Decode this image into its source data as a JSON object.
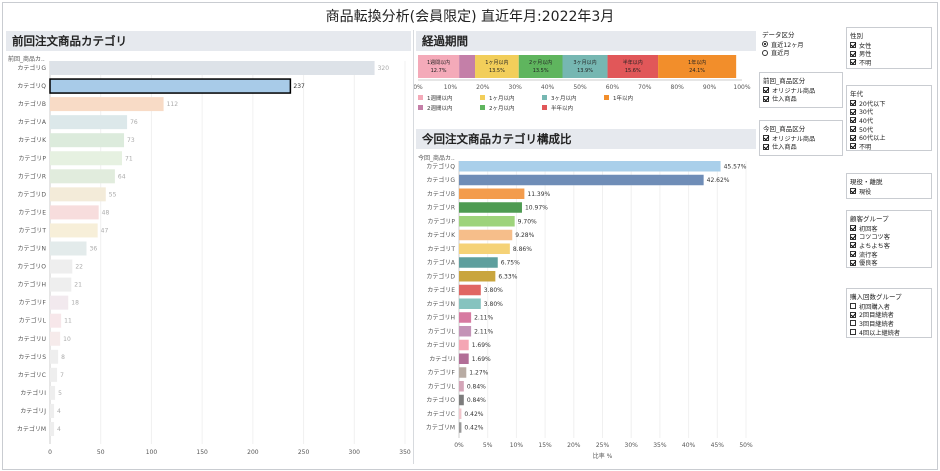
{
  "header": {
    "title": "商品転換分析(会員限定)  直近年月:2022年3月"
  },
  "left_panel": {
    "title": "前回注文商品カテゴリ",
    "dimension_label": "前回_商品カ..",
    "axis_title": "前回_件数"
  },
  "elapsed_panel": {
    "title": "経過期間"
  },
  "right_panel": {
    "title": "今回注文商品カテゴリ構成比",
    "dimension_label": "今回_商品カ..",
    "axis_title": "比率 %"
  },
  "chart_data": [
    {
      "type": "bar",
      "orientation": "horizontal",
      "categories": [
        "カテゴリG",
        "カテゴリQ",
        "カテゴリB",
        "カテゴリA",
        "カテゴリK",
        "カテゴリP",
        "カテゴリR",
        "カテゴリD",
        "カテゴリE",
        "カテゴリT",
        "カテゴリN",
        "カテゴリO",
        "カテゴリH",
        "カテゴリF",
        "カテゴリL",
        "カテゴリU",
        "カテゴリS",
        "カテゴリC",
        "カテゴリI",
        "カテゴリJ",
        "カテゴリM"
      ],
      "values": [
        320,
        237,
        112,
        76,
        73,
        71,
        64,
        55,
        48,
        47,
        36,
        22,
        21,
        18,
        11,
        10,
        8,
        7,
        5,
        4,
        4
      ],
      "value_labels": [
        "320",
        "237",
        "112",
        "76",
        "73",
        "71",
        "64",
        "55",
        "48",
        "47",
        "36",
        "22",
        "21",
        "18",
        "11",
        "10",
        "8",
        "7",
        "5",
        "4",
        "4"
      ],
      "colors": [
        "#dde2e8",
        "#a8cbe8",
        "#f8dbc6",
        "#dce8ea",
        "#dcebdc",
        "#e6f1e1",
        "#e1ecdd",
        "#f3ebd9",
        "#f7dddd",
        "#f7efd9",
        "#e3ebeb",
        "#eeeeee",
        "#eeeeee",
        "#f2e9ee",
        "#f7e7ea",
        "#f6ebeb",
        "#eeeeee",
        "#eeeeee",
        "#eeeeee",
        "#eeeeee",
        "#eeeeee"
      ],
      "selected_index": 1,
      "xlim": [
        0,
        350
      ],
      "ticks": [
        0,
        50,
        100,
        150,
        200,
        250,
        300,
        350
      ],
      "xlabel": "前回_件数"
    },
    {
      "type": "bar",
      "stacked": true,
      "orientation": "horizontal",
      "series": [
        {
          "name": "1週間以内",
          "value": 12.7,
          "color": "#f4aab9"
        },
        {
          "name": "2週間以内",
          "value": 4.9,
          "color": "#c47fa8"
        },
        {
          "name": "1ヶ月以内",
          "value": 13.5,
          "color": "#f2ce5a"
        },
        {
          "name": "2ヶ月以内",
          "value": 13.5,
          "color": "#5fb55e"
        },
        {
          "name": "3ヶ月以内",
          "value": 13.9,
          "color": "#76b7b2"
        },
        {
          "name": "半年以内",
          "value": 15.6,
          "color": "#e15759"
        },
        {
          "name": "1年以内",
          "value": 24.1,
          "color": "#f28e2b"
        }
      ],
      "segment_labels": [
        {
          "name": "1週間以内",
          "value": "12.7%"
        },
        {
          "name": "",
          "value": ""
        },
        {
          "name": "1ヶ月以内",
          "value": "13.5%"
        },
        {
          "name": "2ヶ月以内",
          "value": "13.5%"
        },
        {
          "name": "3ヶ月以内",
          "value": "13.9%"
        },
        {
          "name": "半年以内",
          "value": "15.6%"
        },
        {
          "name": "1年以内",
          "value": "24.1%"
        }
      ],
      "xlim": [
        0,
        100
      ],
      "ticks": [
        "0%",
        "10%",
        "20%",
        "30%",
        "40%",
        "50%",
        "60%",
        "70%",
        "80%",
        "90%",
        "100%"
      ],
      "legend": [
        {
          "name": "1週間以内",
          "color": "#f4aab9"
        },
        {
          "name": "1ヶ月以内",
          "color": "#f2ce5a"
        },
        {
          "name": "3ヶ月以内",
          "color": "#76b7b2"
        },
        {
          "name": "1年以内",
          "color": "#f28e2b"
        },
        {
          "name": "2週間以内",
          "color": "#c47fa8"
        },
        {
          "name": "2ヶ月以内",
          "color": "#5fb55e"
        },
        {
          "name": "半年以内",
          "color": "#e15759"
        }
      ]
    },
    {
      "type": "bar",
      "orientation": "horizontal",
      "categories": [
        "カテゴリQ",
        "カテゴリG",
        "カテゴリB",
        "カテゴリR",
        "カテゴリP",
        "カテゴリK",
        "カテゴリT",
        "カテゴリA",
        "カテゴリD",
        "カテゴリE",
        "カテゴリN",
        "カテゴリH",
        "カテゴリL",
        "カテゴリU",
        "カテゴリI",
        "カテゴリF",
        "カテゴリL",
        "カテゴリO",
        "カテゴリC",
        "カテゴリM"
      ],
      "values": [
        45.57,
        42.62,
        11.39,
        10.97,
        9.7,
        9.28,
        8.86,
        6.75,
        6.33,
        3.8,
        3.8,
        2.11,
        2.11,
        1.69,
        1.69,
        1.27,
        0.84,
        0.84,
        0.42,
        0.42
      ],
      "value_labels": [
        "45.57%",
        "42.62%",
        "11.39%",
        "10.97%",
        "9.70%",
        "9.28%",
        "8.86%",
        "6.75%",
        "6.33%",
        "3.80%",
        "3.80%",
        "2.11%",
        "2.11%",
        "1.69%",
        "1.69%",
        "1.27%",
        "0.84%",
        "0.84%",
        "0.42%",
        "0.42%"
      ],
      "colors": [
        "#a9cfea",
        "#6f8db7",
        "#f39c4d",
        "#4e9b52",
        "#9ed37b",
        "#f6be8a",
        "#f5d277",
        "#5e9f9e",
        "#c9a53e",
        "#e06663",
        "#86c3bf",
        "#d77aa1",
        "#c493b7",
        "#f4a6b4",
        "#b26e97",
        "#b8aba3",
        "#d4a5b8",
        "#7d7d7d",
        "#f0c5cb",
        "#999999"
      ],
      "xlim": [
        0,
        50
      ],
      "ticks": [
        "0%",
        "5%",
        "10%",
        "15%",
        "20%",
        "25%",
        "30%",
        "35%",
        "40%",
        "45%",
        "50%"
      ],
      "xlabel": "比率 %"
    }
  ],
  "filters": {
    "data_kubun": {
      "title": "データ区分",
      "options": [
        {
          "label": "直近12ヶ月",
          "selected": true
        },
        {
          "label": "直近月",
          "selected": false
        }
      ]
    },
    "zenkai_kubun": {
      "title": "前回_商品区分",
      "options": [
        {
          "label": "オリジナル商品",
          "checked": true
        },
        {
          "label": "仕入商品",
          "checked": true
        }
      ]
    },
    "konkai_kubun": {
      "title": "今回_商品区分",
      "options": [
        {
          "label": "オリジナル商品",
          "checked": true
        },
        {
          "label": "仕入商品",
          "checked": true
        }
      ]
    },
    "seibetsu": {
      "title": "性別",
      "options": [
        {
          "label": "女性",
          "checked": true
        },
        {
          "label": "男性",
          "checked": true
        },
        {
          "label": "不明",
          "checked": true
        }
      ]
    },
    "nendai": {
      "title": "年代",
      "options": [
        {
          "label": "20代以下",
          "checked": true
        },
        {
          "label": "30代",
          "checked": true
        },
        {
          "label": "40代",
          "checked": true
        },
        {
          "label": "50代",
          "checked": true
        },
        {
          "label": "60代以上",
          "checked": true
        },
        {
          "label": "不明",
          "checked": true
        }
      ]
    },
    "genyaku": {
      "title": "現役・離脱",
      "options": [
        {
          "label": "現役",
          "checked": true
        }
      ]
    },
    "kokyaku": {
      "title": "顧客グループ",
      "options": [
        {
          "label": "初回客",
          "checked": true
        },
        {
          "label": "コツコツ客",
          "checked": true
        },
        {
          "label": "よちよち客",
          "checked": true
        },
        {
          "label": "流行客",
          "checked": true
        },
        {
          "label": "優良客",
          "checked": true
        }
      ]
    },
    "kounyu": {
      "title": "購入回数グループ",
      "options": [
        {
          "label": "初回購入者",
          "checked": false
        },
        {
          "label": "2回目継続者",
          "checked": true
        },
        {
          "label": "3回目継続者",
          "checked": false
        },
        {
          "label": "4回以上継続者",
          "checked": false
        }
      ]
    }
  }
}
